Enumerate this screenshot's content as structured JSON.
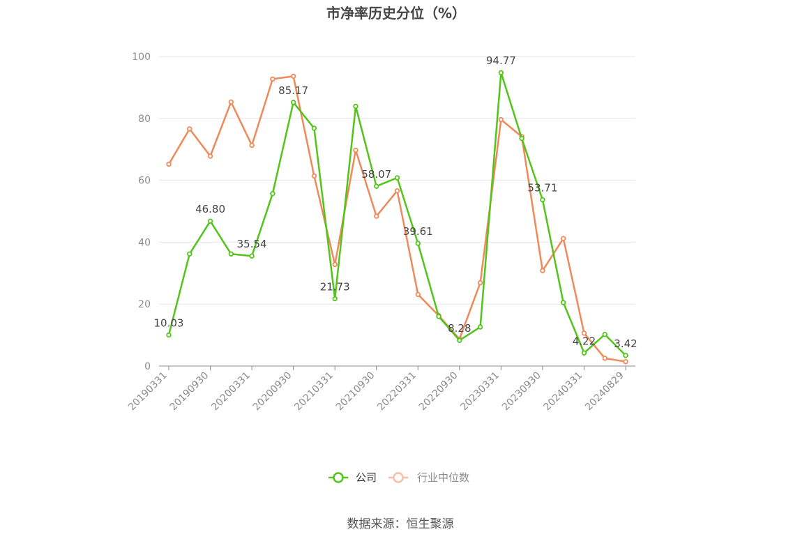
{
  "chart_data": {
    "type": "line",
    "title": "市净率历史分位（%）",
    "xlabel": "",
    "ylabel": "",
    "ylim": [
      0,
      100
    ],
    "yticks": [
      0,
      20,
      40,
      60,
      80,
      100
    ],
    "x_tick_labels": [
      "20190331",
      "20190930",
      "20200331",
      "20200930",
      "20210331",
      "20210930",
      "20220331",
      "20220930",
      "20230331",
      "20230930",
      "20240331",
      "20240829"
    ],
    "x": [
      "20190331",
      "20190630",
      "20190930",
      "20191231",
      "20200331",
      "20200630",
      "20200930",
      "20201231",
      "20210331",
      "20210630",
      "20210930",
      "20211231",
      "20220331",
      "20220630",
      "20220930",
      "20221231",
      "20230331",
      "20230630",
      "20230930",
      "20231231",
      "20240331",
      "20240630",
      "20240829"
    ],
    "series": [
      {
        "name": "公司",
        "color": "#52c41a",
        "values": [
          10.03,
          36.2,
          46.8,
          36.2,
          35.54,
          55.7,
          85.17,
          76.8,
          21.73,
          83.9,
          58.07,
          60.8,
          39.61,
          16.0,
          8.28,
          12.6,
          94.77,
          73.5,
          53.71,
          20.5,
          4.22,
          10.2,
          3.42
        ],
        "labels": [
          "10.03",
          "",
          "46.80",
          "",
          "35.54",
          "",
          "85.17",
          "",
          "21.73",
          "",
          "58.07",
          "",
          "39.61",
          "",
          "8.28",
          "",
          "94.77",
          "",
          "53.71",
          "",
          "4.22",
          "",
          "3.42"
        ]
      },
      {
        "name": "行业中位数",
        "color": "#f0895a",
        "values": [
          65.2,
          76.6,
          67.8,
          85.3,
          71.3,
          92.7,
          93.6,
          61.4,
          32.8,
          69.7,
          48.4,
          56.6,
          23.1,
          16.3,
          8.7,
          26.9,
          79.6,
          74.1,
          30.8,
          41.2,
          10.6,
          2.5,
          1.4
        ]
      }
    ],
    "legend": {
      "position": "bottom",
      "items": [
        {
          "name": "公司",
          "color": "#52c41a",
          "text_color": "#333333"
        },
        {
          "name": "行业中位数",
          "color": "#f9bfa4",
          "text_color": "#8c8c8c"
        }
      ]
    },
    "grid": true
  },
  "source_text": "数据来源：恒生聚源"
}
